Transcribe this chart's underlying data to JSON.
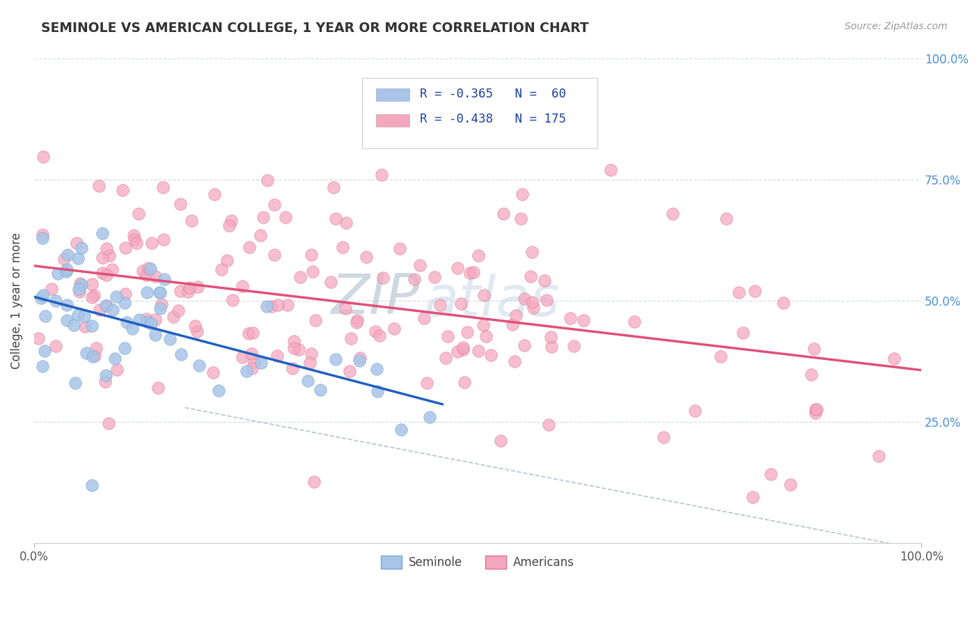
{
  "title": "SEMINOLE VS AMERICAN COLLEGE, 1 YEAR OR MORE CORRELATION CHART",
  "source_text": "Source: ZipAtlas.com",
  "ylabel": "College, 1 year or more",
  "xlim": [
    0.0,
    1.0
  ],
  "ylim": [
    0.0,
    1.0
  ],
  "seminole_color": "#a8c4e8",
  "seminole_edge_color": "#7aaad4",
  "americans_color": "#f4a8c0",
  "americans_edge_color": "#e07090",
  "seminole_line_color": "#2060c0",
  "americans_line_color": "#e0507a",
  "dashed_line_color": "#aabccc",
  "watermark_zip_color": "#b0bece",
  "watermark_atlas_color": "#c8d8e8",
  "background_color": "#ffffff",
  "grid_color": "#c8d4e0",
  "right_tick_color": "#4a90d9",
  "legend_text_color": "#1a40a0",
  "legend_r1": "R = -0.365",
  "legend_n1": "N =  60",
  "legend_r2": "R = -0.438",
  "legend_n2": "N = 175",
  "sem_seed": 7,
  "am_seed": 15
}
